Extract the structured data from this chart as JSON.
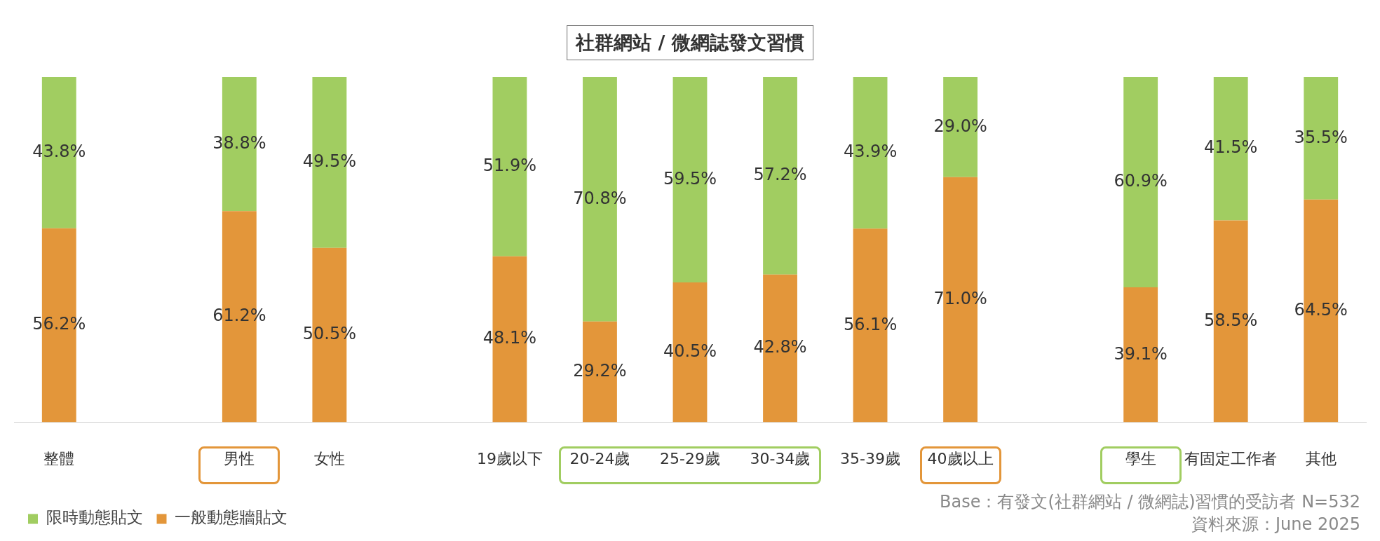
{
  "chart_data": {
    "type": "bar",
    "title": "社群網站 / 微網誌發文習慣",
    "stacked": true,
    "categories": [
      "整體",
      null,
      "男性",
      "女性",
      null,
      "19歲以下",
      "20-24歲",
      "25-29歲",
      "30-34歲",
      "35-39歲",
      "40歲以上",
      null,
      "學生",
      "有固定工作者",
      "其他"
    ],
    "series": [
      {
        "name": "一般動態牆貼文",
        "color": "#e3963a",
        "values": [
          56.2,
          null,
          61.2,
          50.5,
          null,
          48.1,
          29.2,
          40.5,
          42.8,
          56.1,
          71.0,
          null,
          39.1,
          58.5,
          64.5
        ],
        "value_labels": [
          "56.2%",
          null,
          "61.2%",
          "50.5%",
          null,
          "48.1%",
          "29.2%",
          "40.5%",
          "42.8%",
          "56.1%",
          "71.0%",
          null,
          "39.1%",
          "58.5%",
          "64.5%"
        ]
      },
      {
        "name": "限時動態貼文",
        "color": "#a1cd61",
        "values": [
          43.8,
          null,
          38.8,
          49.5,
          null,
          51.9,
          70.8,
          59.5,
          57.2,
          43.9,
          29.0,
          null,
          60.9,
          41.5,
          35.5
        ],
        "value_labels": [
          "43.8%",
          null,
          "38.8%",
          "49.5%",
          null,
          "51.9%",
          "70.8%",
          "59.5%",
          "57.2%",
          "43.9%",
          "29.0%",
          null,
          "60.9%",
          "41.5%",
          "35.5%"
        ]
      }
    ],
    "ylim": [
      0,
      100
    ],
    "tick_labels": "x",
    "grid": false,
    "legend": "bottom left",
    "annotations": [
      "Base：有發文(社群網站 / 微網誌)習慣的受訪者 N=532",
      "資料來源：June 2025"
    ]
  }
}
